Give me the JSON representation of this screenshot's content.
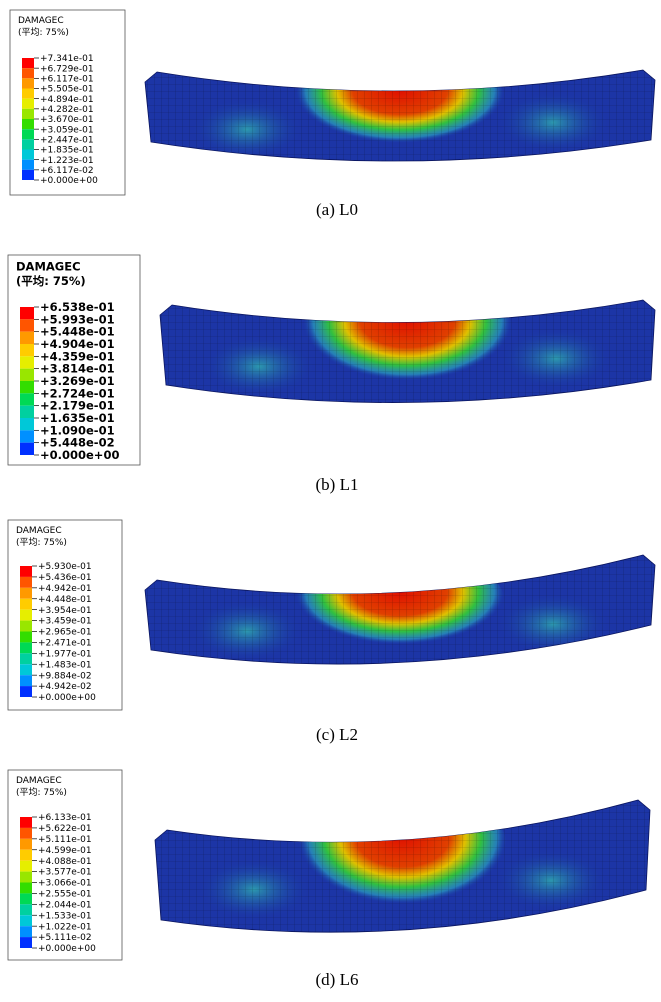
{
  "legend_colors": [
    "#ff0000",
    "#ff5500",
    "#ff9900",
    "#ffcc00",
    "#e6ee00",
    "#99e600",
    "#33dd00",
    "#00d955",
    "#00d0a0",
    "#00c8d8",
    "#0090ff",
    "#0030ff"
  ],
  "panels": [
    {
      "legend_title": "DAMAGEC",
      "legend_subtitle": "(平均: 75%)",
      "legend_labels": [
        "+7.341e-01",
        "+6.729e-01",
        "+6.117e-01",
        "+5.505e-01",
        "+4.894e-01",
        "+4.282e-01",
        "+3.670e-01",
        "+3.059e-01",
        "+2.447e-01",
        "+1.835e-01",
        "+1.223e-01",
        "+6.117e-02",
        "+0.000e+00"
      ],
      "caption": "(a) L0"
    },
    {
      "legend_title": "DAMAGEC",
      "legend_subtitle": "(平均: 75%)",
      "legend_labels": [
        "+6.538e-01",
        "+5.993e-01",
        "+5.448e-01",
        "+4.904e-01",
        "+4.359e-01",
        "+3.814e-01",
        "+3.269e-01",
        "+2.724e-01",
        "+2.179e-01",
        "+1.635e-01",
        "+1.090e-01",
        "+5.448e-02",
        "+0.000e+00"
      ],
      "caption": "(b) L1"
    },
    {
      "legend_title": "DAMAGEC",
      "legend_subtitle": "(平均: 75%)",
      "legend_labels": [
        "+5.930e-01",
        "+5.436e-01",
        "+4.942e-01",
        "+4.448e-01",
        "+3.954e-01",
        "+3.459e-01",
        "+2.965e-01",
        "+2.471e-01",
        "+1.977e-01",
        "+1.483e-01",
        "+9.884e-02",
        "+4.942e-02",
        "+0.000e+00"
      ],
      "caption": "(c) L2"
    },
    {
      "legend_title": "DAMAGEC",
      "legend_subtitle": "(平均: 75%)",
      "legend_labels": [
        "+6.133e-01",
        "+5.622e-01",
        "+5.111e-01",
        "+4.599e-01",
        "+4.088e-01",
        "+3.577e-01",
        "+3.066e-01",
        "+2.555e-01",
        "+2.044e-01",
        "+1.533e-01",
        "+1.022e-01",
        "+5.111e-02",
        "+0.000e+00"
      ],
      "caption": "(d) L6"
    }
  ]
}
